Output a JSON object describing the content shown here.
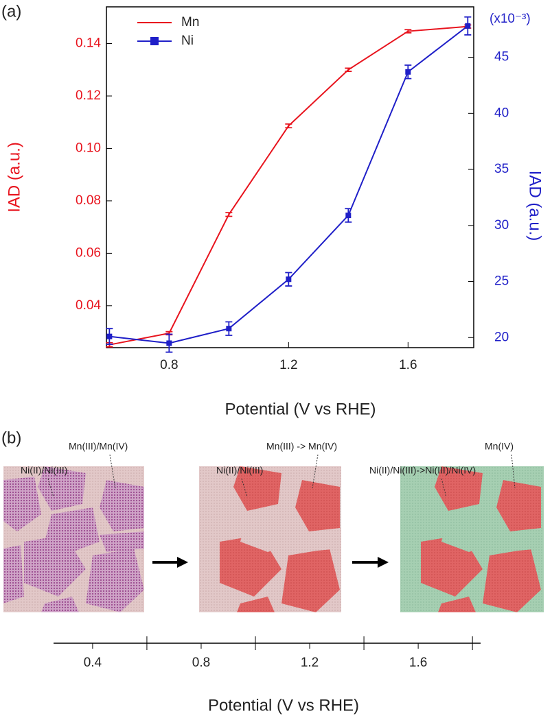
{
  "chart_data": {
    "type": "line",
    "panel_label": "(a)",
    "x": [
      0.6,
      0.8,
      1.0,
      1.2,
      1.4,
      1.6,
      1.8
    ],
    "xlim": [
      0.59,
      1.82
    ],
    "xticks": [
      0.8,
      1.2,
      1.6
    ],
    "xlabel": "Potential (V vs RHE)",
    "ylim": [
      0.024,
      0.154
    ],
    "yticks": [
      0.04,
      0.06,
      0.08,
      {
        "value": 0.1,
        "label": "0.10"
      },
      0.12,
      0.14
    ],
    "ylabel": "IAD (a.u.)",
    "y2lim": [
      19.1,
      49.5
    ],
    "y2ticks": [
      20,
      25,
      30,
      35,
      40,
      45
    ],
    "y2label": "IAD (a.u.)",
    "y2_scale_label": "(x10⁻³)",
    "legend": "upper left",
    "series": [
      {
        "name": "Mn",
        "color": "#e8141e",
        "values": [
          0.0251,
          0.0295,
          0.0748,
          0.1086,
          0.13,
          0.1447,
          0.1465
        ],
        "errors": [
          0.0008,
          0.0006,
          0.0007,
          0.0007,
          0.0006,
          0.0006,
          0.0006
        ]
      },
      {
        "name": "Ni",
        "color": "#1f1fc8",
        "axis": "y2",
        "marker": "square",
        "values": [
          20.1,
          19.5,
          20.8,
          25.2,
          30.9,
          43.7,
          47.8
        ],
        "errors": [
          0.7,
          0.8,
          0.6,
          0.6,
          0.6,
          0.6,
          0.8
        ]
      }
    ]
  },
  "panel_b": {
    "panel_label": "(b)",
    "annotations": [
      "Ni(II)/Ni(III)",
      "Mn(III)/Mn(IV)",
      "Ni(II)/Ni(III)",
      "Mn(III) -> Mn(IV)",
      "Ni(II)/Ni(III)->Ni(III)/Ni(IV)",
      "Mn(IV)"
    ],
    "xlim": [
      0.256,
      1.83
    ],
    "xticks": [
      0.4,
      0.8,
      1.2,
      1.6
    ],
    "minor_ticks": [
      0.6,
      1.0,
      1.4,
      1.8
    ],
    "xlabel": "Potential (V vs RHE)"
  }
}
